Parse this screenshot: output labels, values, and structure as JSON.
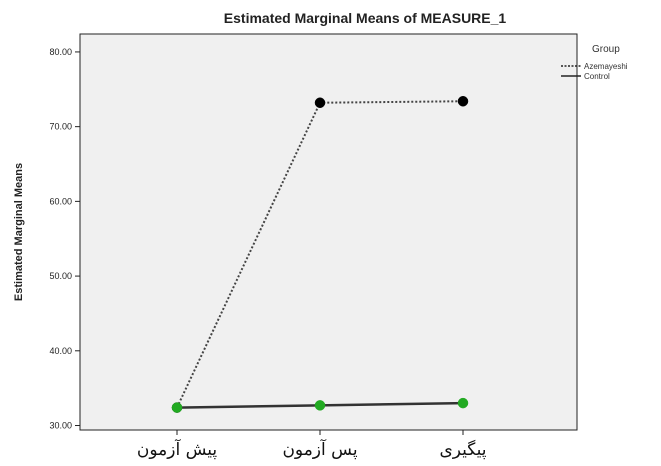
{
  "chart_data": {
    "type": "line",
    "title": "Estimated Marginal Means of MEASURE_1",
    "xlabel": "",
    "ylabel": "Estimated Marginal Means",
    "categories": [
      "پیش آزمون",
      "پس آزمون",
      "پیگیری"
    ],
    "ylim": [
      29.4,
      82.4
    ],
    "yticks": [
      "30.00",
      "40.00",
      "50.00",
      "60.00",
      "70.00",
      "80.00"
    ],
    "legend_title": "Group",
    "legend_position": "top-right",
    "grid": false,
    "series": [
      {
        "name": "Azemayeshi",
        "values": [
          32.4,
          73.2,
          73.4
        ],
        "line_style": "dotted",
        "color": "#000000"
      },
      {
        "name": "Control",
        "values": [
          32.4,
          32.7,
          33.0
        ],
        "line_style": "solid",
        "color": "#22aa22"
      }
    ]
  }
}
